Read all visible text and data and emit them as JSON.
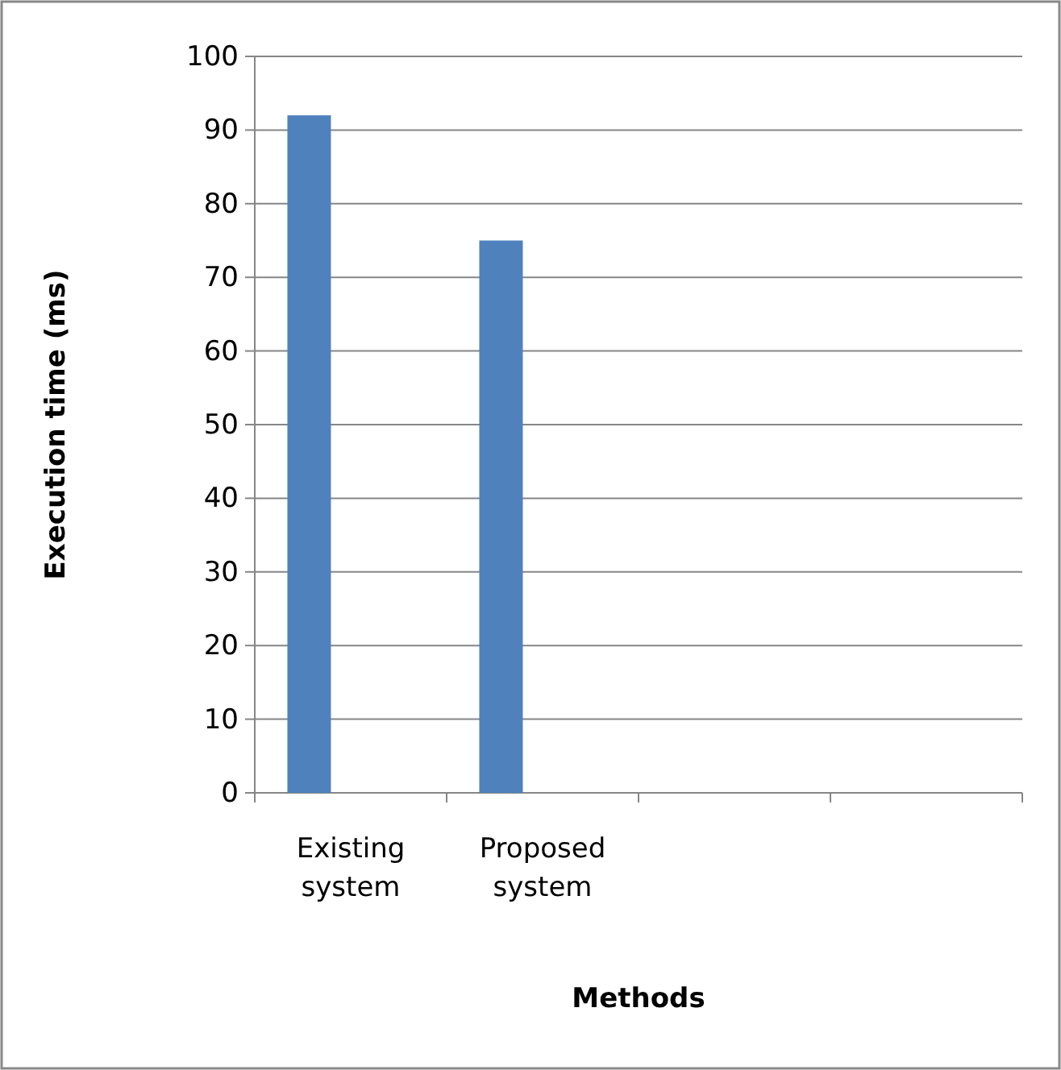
{
  "chart_data": {
    "type": "bar",
    "xlabel": "Methods",
    "ylabel": "Execution time (ms)",
    "categories": [
      "Existing system",
      "Proposed system",
      null,
      null
    ],
    "values": [
      92,
      75,
      null,
      null
    ],
    "color": "#4f81bd",
    "ylim": [
      0,
      100
    ],
    "yticks": [
      0,
      10,
      20,
      30,
      40,
      50,
      60,
      70,
      80,
      90,
      100
    ],
    "grid": "y"
  }
}
